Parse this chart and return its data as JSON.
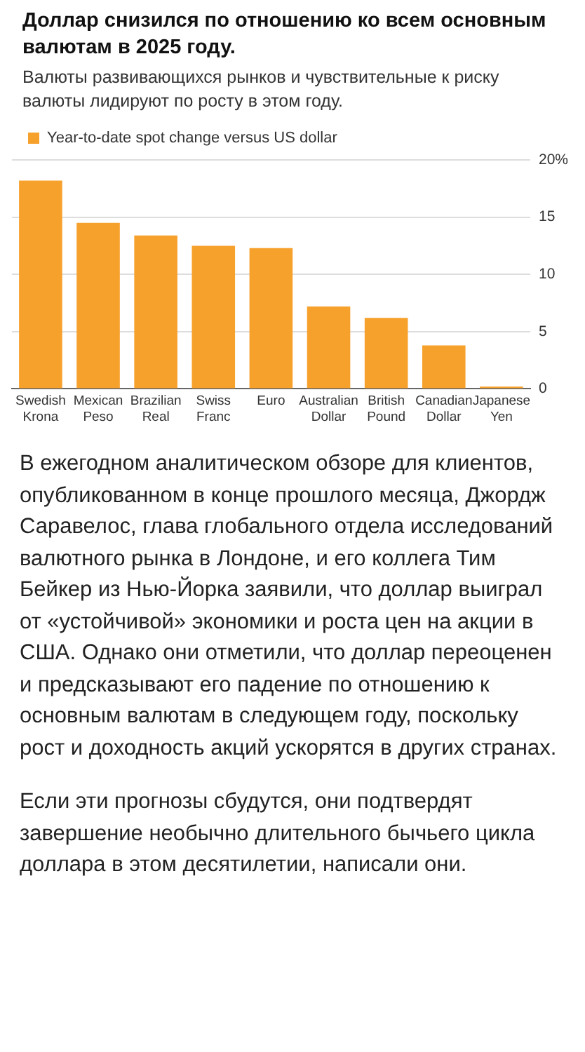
{
  "chart_data": {
    "type": "bar",
    "title": "Доллар снизился по отношению ко всем основным валютам в 2025 году.",
    "subtitle": "Валюты развивающихся рынков и чувствительные к риску валюты лидируют по росту в этом году.",
    "categories": [
      "Swedish Krona",
      "Mexican Peso",
      "Brazilian Real",
      "Swiss Franc",
      "Euro",
      "Australian Dollar",
      "British Pound",
      "Canadian Dollar",
      "Japanese Yen"
    ],
    "series": [
      {
        "name": "Year-to-date spot change versus US dollar",
        "color": "#f7a12d",
        "values": [
          18.2,
          14.5,
          13.4,
          12.5,
          12.3,
          7.2,
          6.2,
          3.8,
          0.2
        ]
      }
    ],
    "ylim": [
      0,
      20
    ],
    "yticks": [
      0,
      5,
      10,
      15,
      {
        "value": 20,
        "label": "20%"
      }
    ],
    "grid": "y",
    "legend": "top left",
    "annotations": [
      "В ежегодном аналитическом обзоре для клиентов, опубликованном в конце прошлого месяца, Джордж Саравелос, глава глобального отдела исследований валютного рынка в Лондоне, и его коллега Тим Бейкер из Нью-Йорка заявили, что доллар выиграл от «устойчивой» экономики и роста цен на акции в США. Однако они отметили, что доллар переоценен и предсказывают его падение по отношению к основным валютам в следующем году, поскольку рост и доходность акций ускорятся в других странах.",
      "Если эти прогнозы сбудутся, они подтвердят завершение необычно длительного бычьего цикла доллара в этом десятилетии, написали они."
    ]
  }
}
